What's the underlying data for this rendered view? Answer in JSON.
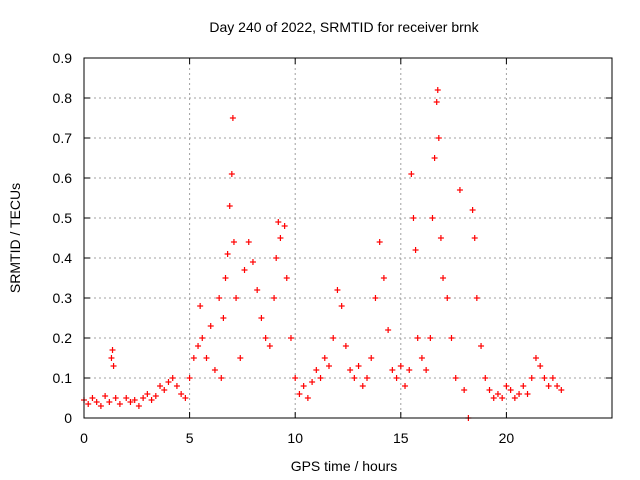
{
  "chart_data": {
    "type": "scatter",
    "title": "Day 240 of 2022, SRMTID for receiver brnk",
    "xlabel": "GPS time / hours",
    "ylabel": "SRMTID / TECUs",
    "xlim": [
      0,
      25
    ],
    "ylim": [
      0,
      0.9
    ],
    "xticks": [
      0,
      5,
      10,
      15,
      20
    ],
    "yticks": [
      0,
      0.1,
      0.2,
      0.3,
      0.4,
      0.5,
      0.6,
      0.7,
      0.8,
      0.9
    ],
    "xtick_labels": [
      "0",
      "5",
      "10",
      "15",
      "20"
    ],
    "ytick_labels": [
      "0",
      "0.1",
      "0.2",
      "0.3",
      "0.4",
      "0.5",
      "0.6",
      "0.7",
      "0.8",
      "0.9"
    ],
    "grid": true,
    "marker": "+",
    "color": "#ff0000",
    "series": [
      {
        "name": "SRMTID",
        "points": [
          [
            0.0,
            0.045
          ],
          [
            0.2,
            0.035
          ],
          [
            0.4,
            0.05
          ],
          [
            0.6,
            0.04
          ],
          [
            0.8,
            0.03
          ],
          [
            1.0,
            0.055
          ],
          [
            1.2,
            0.04
          ],
          [
            1.3,
            0.15
          ],
          [
            1.35,
            0.17
          ],
          [
            1.4,
            0.13
          ],
          [
            1.5,
            0.05
          ],
          [
            1.7,
            0.035
          ],
          [
            2.0,
            0.05
          ],
          [
            2.2,
            0.04
          ],
          [
            2.4,
            0.045
          ],
          [
            2.6,
            0.03
          ],
          [
            2.8,
            0.05
          ],
          [
            3.0,
            0.06
          ],
          [
            3.2,
            0.045
          ],
          [
            3.4,
            0.055
          ],
          [
            3.6,
            0.08
          ],
          [
            3.8,
            0.07
          ],
          [
            4.0,
            0.09
          ],
          [
            4.2,
            0.1
          ],
          [
            4.4,
            0.08
          ],
          [
            4.6,
            0.06
          ],
          [
            4.8,
            0.05
          ],
          [
            5.0,
            0.1
          ],
          [
            5.2,
            0.15
          ],
          [
            5.4,
            0.18
          ],
          [
            5.5,
            0.28
          ],
          [
            5.6,
            0.2
          ],
          [
            5.8,
            0.15
          ],
          [
            6.0,
            0.23
          ],
          [
            6.2,
            0.12
          ],
          [
            6.4,
            0.3
          ],
          [
            6.5,
            0.1
          ],
          [
            6.6,
            0.25
          ],
          [
            6.7,
            0.35
          ],
          [
            6.8,
            0.41
          ],
          [
            6.9,
            0.53
          ],
          [
            7.0,
            0.61
          ],
          [
            7.05,
            0.75
          ],
          [
            7.1,
            0.44
          ],
          [
            7.2,
            0.3
          ],
          [
            7.4,
            0.15
          ],
          [
            7.6,
            0.37
          ],
          [
            7.8,
            0.44
          ],
          [
            8.0,
            0.39
          ],
          [
            8.2,
            0.32
          ],
          [
            8.4,
            0.25
          ],
          [
            8.6,
            0.2
          ],
          [
            8.8,
            0.18
          ],
          [
            9.0,
            0.3
          ],
          [
            9.1,
            0.4
          ],
          [
            9.2,
            0.49
          ],
          [
            9.3,
            0.45
          ],
          [
            9.5,
            0.48
          ],
          [
            9.6,
            0.35
          ],
          [
            9.8,
            0.2
          ],
          [
            10.0,
            0.1
          ],
          [
            10.2,
            0.06
          ],
          [
            10.4,
            0.08
          ],
          [
            10.6,
            0.05
          ],
          [
            10.8,
            0.09
          ],
          [
            11.0,
            0.12
          ],
          [
            11.2,
            0.1
          ],
          [
            11.4,
            0.15
          ],
          [
            11.6,
            0.13
          ],
          [
            11.8,
            0.2
          ],
          [
            12.0,
            0.32
          ],
          [
            12.2,
            0.28
          ],
          [
            12.4,
            0.18
          ],
          [
            12.6,
            0.12
          ],
          [
            12.8,
            0.1
          ],
          [
            13.0,
            0.13
          ],
          [
            13.2,
            0.08
          ],
          [
            13.4,
            0.1
          ],
          [
            13.6,
            0.15
          ],
          [
            13.8,
            0.3
          ],
          [
            14.0,
            0.44
          ],
          [
            14.2,
            0.35
          ],
          [
            14.4,
            0.22
          ],
          [
            14.6,
            0.12
          ],
          [
            14.8,
            0.1
          ],
          [
            15.0,
            0.13
          ],
          [
            15.2,
            0.08
          ],
          [
            15.4,
            0.12
          ],
          [
            15.5,
            0.61
          ],
          [
            15.6,
            0.5
          ],
          [
            15.7,
            0.42
          ],
          [
            15.8,
            0.2
          ],
          [
            16.0,
            0.15
          ],
          [
            16.2,
            0.12
          ],
          [
            16.4,
            0.2
          ],
          [
            16.5,
            0.5
          ],
          [
            16.6,
            0.65
          ],
          [
            16.7,
            0.79
          ],
          [
            16.75,
            0.82
          ],
          [
            16.8,
            0.7
          ],
          [
            16.9,
            0.45
          ],
          [
            17.0,
            0.35
          ],
          [
            17.2,
            0.3
          ],
          [
            17.4,
            0.2
          ],
          [
            17.6,
            0.1
          ],
          [
            17.8,
            0.57
          ],
          [
            18.0,
            0.07
          ],
          [
            18.2,
            0.0
          ],
          [
            18.4,
            0.52
          ],
          [
            18.5,
            0.45
          ],
          [
            18.6,
            0.3
          ],
          [
            18.8,
            0.18
          ],
          [
            19.0,
            0.1
          ],
          [
            19.2,
            0.07
          ],
          [
            19.4,
            0.05
          ],
          [
            19.6,
            0.06
          ],
          [
            19.8,
            0.05
          ],
          [
            20.0,
            0.08
          ],
          [
            20.2,
            0.07
          ],
          [
            20.4,
            0.05
          ],
          [
            20.6,
            0.06
          ],
          [
            20.8,
            0.08
          ],
          [
            21.0,
            0.06
          ],
          [
            21.2,
            0.1
          ],
          [
            21.4,
            0.15
          ],
          [
            21.6,
            0.13
          ],
          [
            21.8,
            0.1
          ],
          [
            22.0,
            0.08
          ],
          [
            22.2,
            0.1
          ],
          [
            22.4,
            0.08
          ],
          [
            22.6,
            0.07
          ]
        ]
      }
    ]
  }
}
